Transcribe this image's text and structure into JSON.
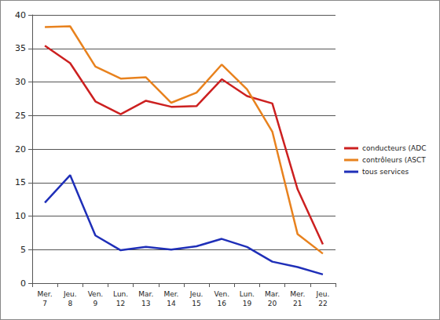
{
  "chart_data": {
    "type": "line",
    "categories": [
      "Mer.\n7",
      "Jeu.\n8",
      "Ven.\n9",
      "Lun.\n12",
      "Mar.\n13",
      "Mer.\n14",
      "Jeu.\n15",
      "Ven.\n16",
      "Lun.\n19",
      "Mar.\n20",
      "Mer.\n21",
      "Jeu.\n22"
    ],
    "series": [
      {
        "name": "conducteurs (ADC",
        "color": "#cc2020",
        "values": [
          35.4,
          32.8,
          27.1,
          25.2,
          27.2,
          26.3,
          26.4,
          30.4,
          27.9,
          26.8,
          14.0,
          5.8
        ]
      },
      {
        "name": "contrôleurs (ASCT",
        "color": "#e8821e",
        "values": [
          38.2,
          38.3,
          32.3,
          30.5,
          30.7,
          26.9,
          28.4,
          32.6,
          28.9,
          22.6,
          7.3,
          4.4
        ]
      },
      {
        "name": "tous services",
        "color": "#1f2fb8",
        "values": [
          12.0,
          16.1,
          7.1,
          4.9,
          5.4,
          5.0,
          5.5,
          6.6,
          5.4,
          3.2,
          2.4,
          1.3
        ]
      }
    ],
    "ylim": [
      0,
      40
    ],
    "yticks": [
      0,
      5,
      10,
      15,
      20,
      25,
      30,
      35,
      40
    ],
    "grid": true,
    "legend": "right"
  }
}
